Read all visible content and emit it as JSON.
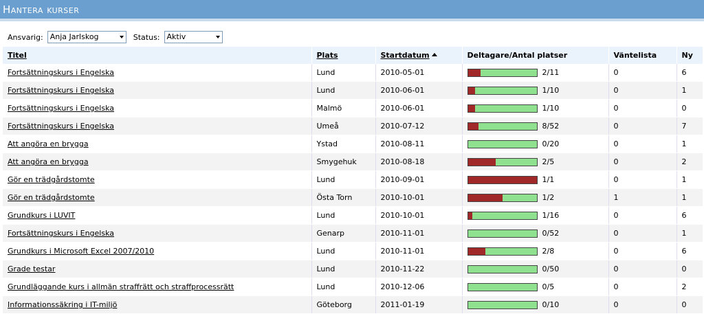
{
  "header": {
    "title": "Hantera kurser"
  },
  "filters": {
    "responsible_label": "Ansvarig:",
    "responsible": "Anja Jarlskog",
    "status_label": "Status:",
    "status": "Aktiv"
  },
  "table": {
    "columns": [
      "Titel",
      "Plats",
      "Startdatum",
      "Deltagare/Antal platser",
      "Väntelista",
      "Ny"
    ],
    "rows": [
      [
        "Fortsättningskurs i Engelska",
        "Lund",
        "2010-05-01",
        "2/11",
        0,
        6
      ],
      [
        "Fortsättningskurs i Engelska",
        "Lund",
        "2010-06-01",
        "1/10",
        0,
        1
      ],
      [
        "Fortsättningskurs i Engelska",
        "Malmö",
        "2010-06-01",
        "1/10",
        0,
        0
      ],
      [
        "Fortsättningskurs i Engelska",
        "Umeå",
        "2010-07-12",
        "8/52",
        0,
        7
      ],
      [
        "Att angöra en brygga",
        "Ystad",
        "2010-08-11",
        "0/20",
        0,
        1
      ],
      [
        "Att angöra en brygga",
        "Smygehuk",
        "2010-08-18",
        "2/5",
        0,
        2
      ],
      [
        "Gör en trädgårdstomte",
        "Lund",
        "2010-09-01",
        "1/1",
        0,
        1
      ],
      [
        "Gör en trädgårdstomte",
        "Östa Torn",
        "2010-10-01",
        "1/2",
        1,
        1
      ],
      [
        "Grundkurs i LUVIT",
        "Lund",
        "2010-10-01",
        "1/16",
        0,
        6
      ],
      [
        "Fortsättningskurs i Engelska",
        "Genarp",
        "2010-11-01",
        "0/52",
        0,
        1
      ],
      [
        "Grundkurs i Microsoft Excel 2007/2010",
        "Lund",
        "2010-11-01",
        "2/8",
        0,
        6
      ],
      [
        "Grade testar",
        "Lund",
        "2010-11-22",
        "0/50",
        0,
        0
      ],
      [
        "Grundläggande kurs i allmän straffrätt och straffprocessrätt",
        "Lund",
        "2010-12-06",
        "0/5",
        0,
        2
      ],
      [
        "Informationssäkring i IT-miljö",
        "Göteborg",
        "2011-01-19",
        "0/10",
        0,
        0
      ]
    ]
  }
}
